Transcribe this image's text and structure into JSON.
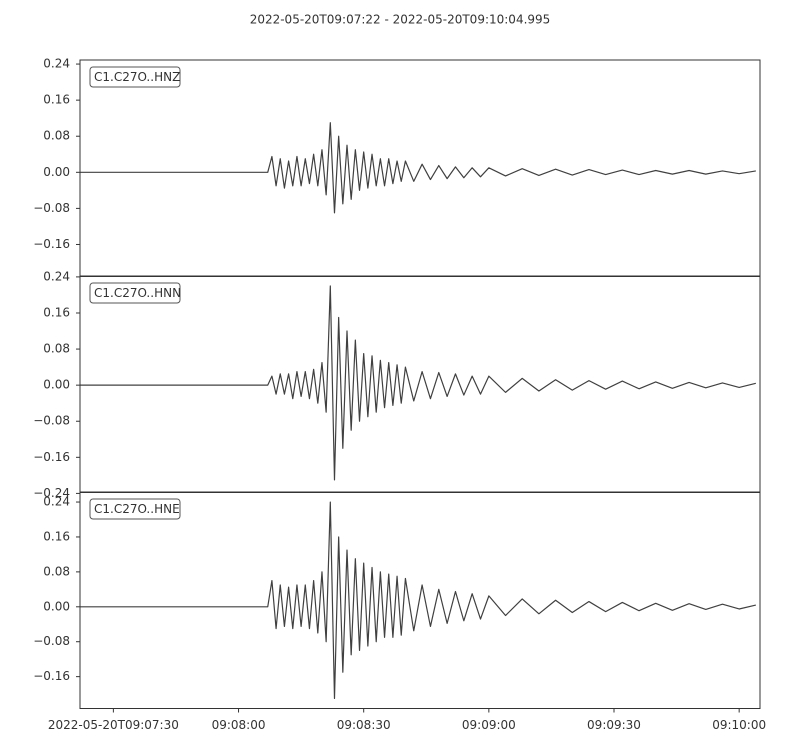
{
  "chart_data": {
    "type": "line",
    "title": "2022-05-20T09:07:22  -  2022-05-20T09:10:04.995",
    "color": "#404040",
    "xlim": [
      "09:07:22",
      "09:10:04.995"
    ],
    "xticks": [
      {
        "value": "09:07:30",
        "label": "2022-05-20T09:07:30"
      },
      "09:08:00",
      "09:08:30",
      "09:09:00",
      "09:09:30",
      "09:10:00"
    ],
    "x": [
      "09:07:22",
      "09:08:07",
      "09:08:08",
      "09:08:09",
      "09:08:10",
      "09:08:11",
      "09:08:12",
      "09:08:13",
      "09:08:14",
      "09:08:15",
      "09:08:16",
      "09:08:17",
      "09:08:18",
      "09:08:19",
      "09:08:20",
      "09:08:21",
      "09:08:22",
      "09:08:23",
      "09:08:24",
      "09:08:25",
      "09:08:26",
      "09:08:27",
      "09:08:28",
      "09:08:29",
      "09:08:30",
      "09:08:31",
      "09:08:32",
      "09:08:33",
      "09:08:34",
      "09:08:35",
      "09:08:36",
      "09:08:37",
      "09:08:38",
      "09:08:39",
      "09:08:40",
      "09:08:42",
      "09:08:44",
      "09:08:46",
      "09:08:48",
      "09:08:50",
      "09:08:52",
      "09:08:54",
      "09:08:56",
      "09:08:58",
      "09:09:00",
      "09:09:04",
      "09:09:08",
      "09:09:12",
      "09:09:16",
      "09:09:20",
      "09:09:24",
      "09:09:28",
      "09:09:32",
      "09:09:36",
      "09:09:40",
      "09:09:44",
      "09:09:48",
      "09:09:52",
      "09:09:56",
      "09:10:00",
      "09:10:04"
    ],
    "panels": [
      {
        "name": "C1.C27O..HNZ",
        "ylim": [
          -0.231,
          0.249
        ],
        "yticks": [
          {
            "value": -0.16,
            "label": "−0.16"
          },
          {
            "value": -0.08,
            "label": "−0.08"
          },
          {
            "value": 0,
            "label": "0.00"
          },
          0.08,
          0.16,
          0.24
        ],
        "values": [
          0,
          0,
          0.035,
          -0.03,
          0.03,
          -0.035,
          0.025,
          -0.03,
          0.035,
          -0.03,
          0.03,
          -0.025,
          0.04,
          -0.03,
          0.05,
          -0.05,
          0.11,
          -0.09,
          0.08,
          -0.07,
          0.06,
          -0.06,
          0.05,
          -0.04,
          0.045,
          -0.035,
          0.04,
          -0.03,
          0.03,
          -0.03,
          0.03,
          -0.025,
          0.025,
          -0.02,
          0.025,
          -0.02,
          0.018,
          -0.016,
          0.015,
          -0.014,
          0.012,
          -0.012,
          0.01,
          -0.01,
          0.01,
          -0.008,
          0.008,
          -0.007,
          0.007,
          -0.006,
          0.006,
          -0.005,
          0.005,
          -0.005,
          0.004,
          -0.004,
          0.004,
          -0.004,
          0.003,
          -0.003,
          0.003
        ]
      },
      {
        "name": "C1.C27O..HNN",
        "ylim": [
          -0.238,
          0.242
        ],
        "yticks": [
          {
            "value": -0.24,
            "label": "−0.24"
          },
          {
            "value": -0.16,
            "label": "−0.16"
          },
          {
            "value": -0.08,
            "label": "−0.08"
          },
          {
            "value": 0,
            "label": "0.00"
          },
          0.08,
          0.16,
          0.24
        ],
        "values": [
          0,
          0,
          0.02,
          -0.02,
          0.025,
          -0.02,
          0.025,
          -0.03,
          0.03,
          -0.025,
          0.03,
          -0.03,
          0.035,
          -0.04,
          0.05,
          -0.06,
          0.22,
          -0.21,
          0.15,
          -0.14,
          0.12,
          -0.1,
          0.1,
          -0.08,
          0.07,
          -0.07,
          0.065,
          -0.06,
          0.055,
          -0.05,
          0.05,
          -0.045,
          0.045,
          -0.04,
          0.04,
          -0.035,
          0.03,
          -0.03,
          0.028,
          -0.025,
          0.025,
          -0.022,
          0.02,
          -0.02,
          0.02,
          -0.016,
          0.015,
          -0.013,
          0.012,
          -0.011,
          0.01,
          -0.009,
          0.009,
          -0.008,
          0.007,
          -0.007,
          0.006,
          -0.006,
          0.005,
          -0.005,
          0.004
        ]
      },
      {
        "name": "C1.C27O..HNE",
        "ylim": [
          -0.233,
          0.263
        ],
        "yticks": [
          {
            "value": -0.16,
            "label": "−0.16"
          },
          {
            "value": -0.08,
            "label": "−0.08"
          },
          {
            "value": 0,
            "label": "0.00"
          },
          0.08,
          0.16,
          0.24
        ],
        "values": [
          0,
          0,
          0.06,
          -0.05,
          0.05,
          -0.045,
          0.045,
          -0.05,
          0.05,
          -0.045,
          0.05,
          -0.05,
          0.06,
          -0.06,
          0.08,
          -0.08,
          0.24,
          -0.21,
          0.16,
          -0.15,
          0.13,
          -0.11,
          0.11,
          -0.1,
          0.1,
          -0.09,
          0.09,
          -0.08,
          0.08,
          -0.07,
          0.075,
          -0.07,
          0.07,
          -0.065,
          0.065,
          -0.055,
          0.05,
          -0.045,
          0.04,
          -0.038,
          0.035,
          -0.032,
          0.03,
          -0.028,
          0.025,
          -0.02,
          0.018,
          -0.016,
          0.015,
          -0.013,
          0.012,
          -0.011,
          0.01,
          -0.009,
          0.008,
          -0.008,
          0.007,
          -0.006,
          0.006,
          -0.005,
          0.004
        ]
      }
    ]
  }
}
